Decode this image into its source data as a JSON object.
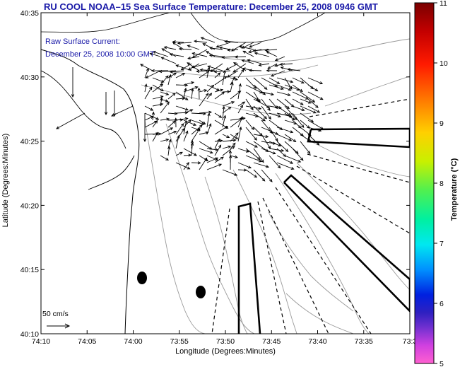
{
  "title": "RU COOL  NOAA–15  Sea Surface Temperature:  December 25, 2008 0946 GMT",
  "legend": {
    "line1": "Raw Surface Current:",
    "line2": "December 25, 2008 10:00 GMT",
    "scale_label": "50 cm/s"
  },
  "axes": {
    "xlabel": "Longitude (Degrees:Minutes)",
    "ylabel": "Latitude (Degrees:Minutes)",
    "xticks": [
      "74:10",
      "74:05",
      "74:00",
      "73:55",
      "73:50",
      "73:45",
      "73:40",
      "73:35",
      "73:3"
    ],
    "yticks": [
      "40:35",
      "40:30",
      "40:25",
      "40:20",
      "40:15",
      "40:10"
    ]
  },
  "colorbar": {
    "label": "Temperature (°C)",
    "ticks": [
      "11",
      "10",
      "9",
      "8",
      "7",
      "6",
      "5"
    ],
    "min": 5,
    "max": 11
  },
  "colors": {
    "title": "#1a1aa8",
    "frame": "#000000",
    "contour": "#9a9a9a",
    "coastline": "#000000"
  }
}
